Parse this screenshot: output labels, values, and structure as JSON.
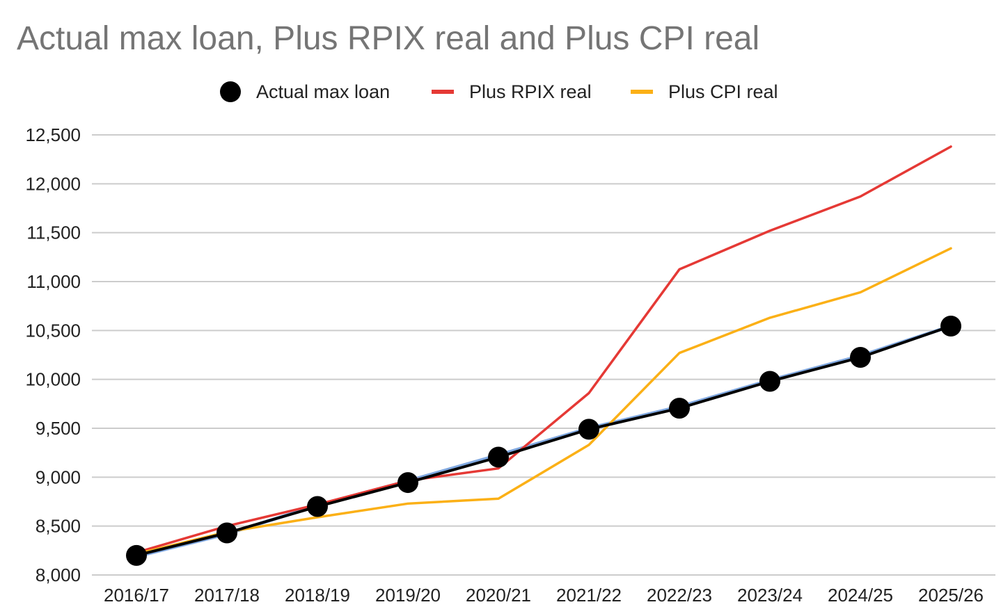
{
  "chart_data": {
    "type": "line",
    "title": "Actual max loan, Plus RPIX real and Plus CPI real",
    "xlabel": "",
    "ylabel": "",
    "categories": [
      "2016/17",
      "2017/18",
      "2018/19",
      "2019/20",
      "2020/21",
      "2021/22",
      "2022/23",
      "2023/24",
      "2024/25",
      "2025/26"
    ],
    "ylim": [
      8000,
      12500
    ],
    "yticks": [
      8000,
      8500,
      9000,
      9500,
      10000,
      10500,
      11000,
      11500,
      12000,
      12500
    ],
    "ytick_labels": [
      "8,000",
      "8,500",
      "9,000",
      "9,500",
      "10,000",
      "10,500",
      "11,000",
      "11,500",
      "12,000",
      "12,500"
    ],
    "grid": true,
    "legend_position": "top",
    "series": [
      {
        "name": "Actual max loan",
        "style": "line-markers",
        "color": "#000000",
        "values": [
          8200,
          8430,
          8700,
          8945,
          9205,
          9490,
          9705,
          9980,
          10225,
          10545
        ]
      },
      {
        "name": "Plus RPIX real",
        "style": "line",
        "color": "#e53935",
        "values": [
          8230,
          8500,
          8720,
          8965,
          9090,
          9860,
          11125,
          11520,
          11870,
          12380
        ]
      },
      {
        "name": "Plus CPI real",
        "style": "line",
        "color": "#fbb016",
        "values": [
          8215,
          8440,
          8590,
          8730,
          8780,
          9330,
          10270,
          10630,
          10890,
          11340
        ]
      },
      {
        "name": "",
        "style": "line",
        "color": "#80a8e0",
        "values": [
          8190,
          8420,
          8710,
          8960,
          9225,
          9500,
          9720,
          9990,
          10240,
          10545
        ]
      }
    ]
  }
}
